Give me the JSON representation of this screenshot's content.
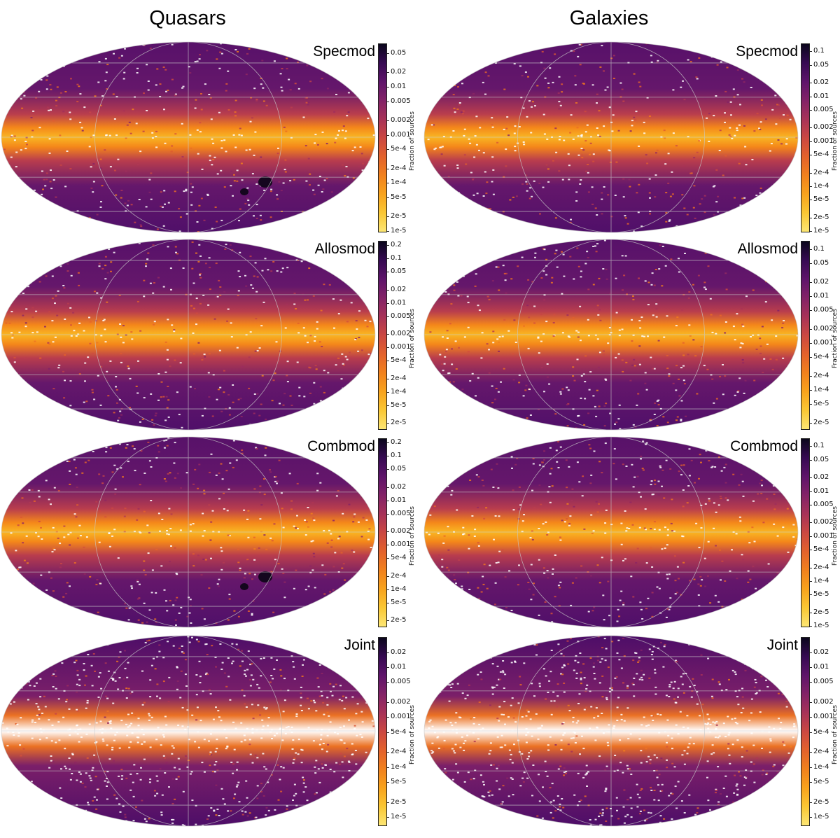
{
  "columns": [
    {
      "title": "Quasars"
    },
    {
      "title": "Galaxies"
    }
  ],
  "colorbar_label": "Fraction of sources",
  "chart_data": [
    {
      "type": "heatmap",
      "column": "Quasars",
      "title": "Specmod",
      "projection": "mollweide",
      "colormap": "inferno_r",
      "scale": "log",
      "colorbar_ticks": [
        "0.05",
        "0.02",
        "0.01",
        "0.005",
        "0.002",
        "0.001",
        "5e-4",
        "2e-4",
        "1e-4",
        "5e-5",
        "2e-5",
        "1e-5"
      ],
      "colorbar_range": [
        1e-05,
        0.08
      ]
    },
    {
      "type": "heatmap",
      "column": "Galaxies",
      "title": "Specmod",
      "projection": "mollweide",
      "colormap": "inferno_r",
      "scale": "log",
      "colorbar_ticks": [
        "0.1",
        "0.05",
        "0.02",
        "0.01",
        "0.005",
        "0.002",
        "0.001",
        "5e-4",
        "2e-4",
        "1e-4",
        "5e-5",
        "2e-5",
        "1e-5"
      ],
      "colorbar_range": [
        1e-05,
        0.15
      ]
    },
    {
      "type": "heatmap",
      "column": "Quasars",
      "title": "Allosmod",
      "projection": "mollweide",
      "colormap": "inferno_r",
      "scale": "log",
      "colorbar_ticks": [
        "0.2",
        "0.1",
        "0.05",
        "0.02",
        "0.01",
        "0.005",
        "0.002",
        "0.001",
        "5e-4",
        "2e-4",
        "1e-4",
        "5e-5",
        "2e-5"
      ],
      "colorbar_range": [
        1.5e-05,
        0.25
      ]
    },
    {
      "type": "heatmap",
      "column": "Galaxies",
      "title": "Allosmod",
      "projection": "mollweide",
      "colormap": "inferno_r",
      "scale": "log",
      "colorbar_ticks": [
        "0.1",
        "0.05",
        "0.02",
        "0.01",
        "0.005",
        "0.002",
        "0.001",
        "5e-4",
        "2e-4",
        "1e-4",
        "5e-5",
        "2e-5"
      ],
      "colorbar_range": [
        1.5e-05,
        0.15
      ]
    },
    {
      "type": "heatmap",
      "column": "Quasars",
      "title": "Combmod",
      "projection": "mollweide",
      "colormap": "inferno_r",
      "scale": "log",
      "colorbar_ticks": [
        "0.2",
        "0.1",
        "0.05",
        "0.02",
        "0.01",
        "0.005",
        "0.002",
        "0.001",
        "5e-4",
        "2e-4",
        "1e-4",
        "5e-5",
        "2e-5"
      ],
      "colorbar_range": [
        1.5e-05,
        0.25
      ]
    },
    {
      "type": "heatmap",
      "column": "Galaxies",
      "title": "Combmod",
      "projection": "mollweide",
      "colormap": "inferno_r",
      "scale": "log",
      "colorbar_ticks": [
        "0.1",
        "0.05",
        "0.02",
        "0.01",
        "0.005",
        "0.002",
        "0.001",
        "5e-4",
        "2e-4",
        "1e-4",
        "5e-5",
        "2e-5",
        "1e-5"
      ],
      "colorbar_range": [
        1e-05,
        0.15
      ]
    },
    {
      "type": "heatmap",
      "column": "Quasars",
      "title": "Joint",
      "projection": "mollweide",
      "colormap": "inferno_r",
      "scale": "log",
      "colorbar_ticks": [
        "0.02",
        "0.01",
        "0.005",
        "0.002",
        "0.001",
        "5e-4",
        "2e-4",
        "1e-4",
        "5e-5",
        "2e-5",
        "1e-5"
      ],
      "colorbar_range": [
        7e-06,
        0.04
      ]
    },
    {
      "type": "heatmap",
      "column": "Galaxies",
      "title": "Joint",
      "projection": "mollweide",
      "colormap": "inferno_r",
      "scale": "log",
      "colorbar_ticks": [
        "0.02",
        "0.01",
        "0.005",
        "0.002",
        "0.001",
        "5e-4",
        "2e-4",
        "1e-4",
        "5e-5",
        "2e-5",
        "1e-5"
      ],
      "colorbar_range": [
        7e-06,
        0.04
      ]
    }
  ]
}
